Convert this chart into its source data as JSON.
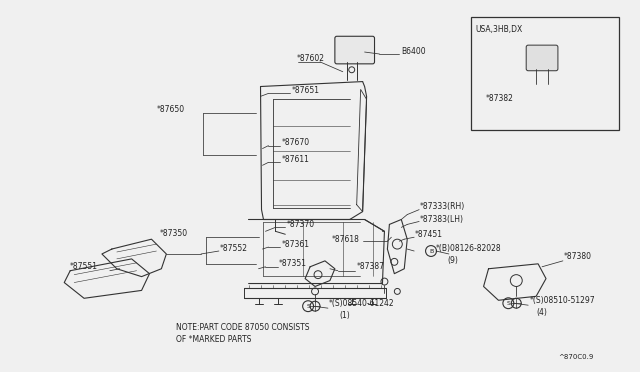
{
  "bg_color": "#f0f0f0",
  "fig_width": 6.4,
  "fig_height": 3.72,
  "note_line1": "NOTE:PART CODE 87050 CONSISTS",
  "note_line2": "OF *MARKED PARTS",
  "diagram_code": "^870C0.9",
  "inset_label": "USA,3HB,DX",
  "inset_part": "*87382",
  "font_size": 5.5
}
